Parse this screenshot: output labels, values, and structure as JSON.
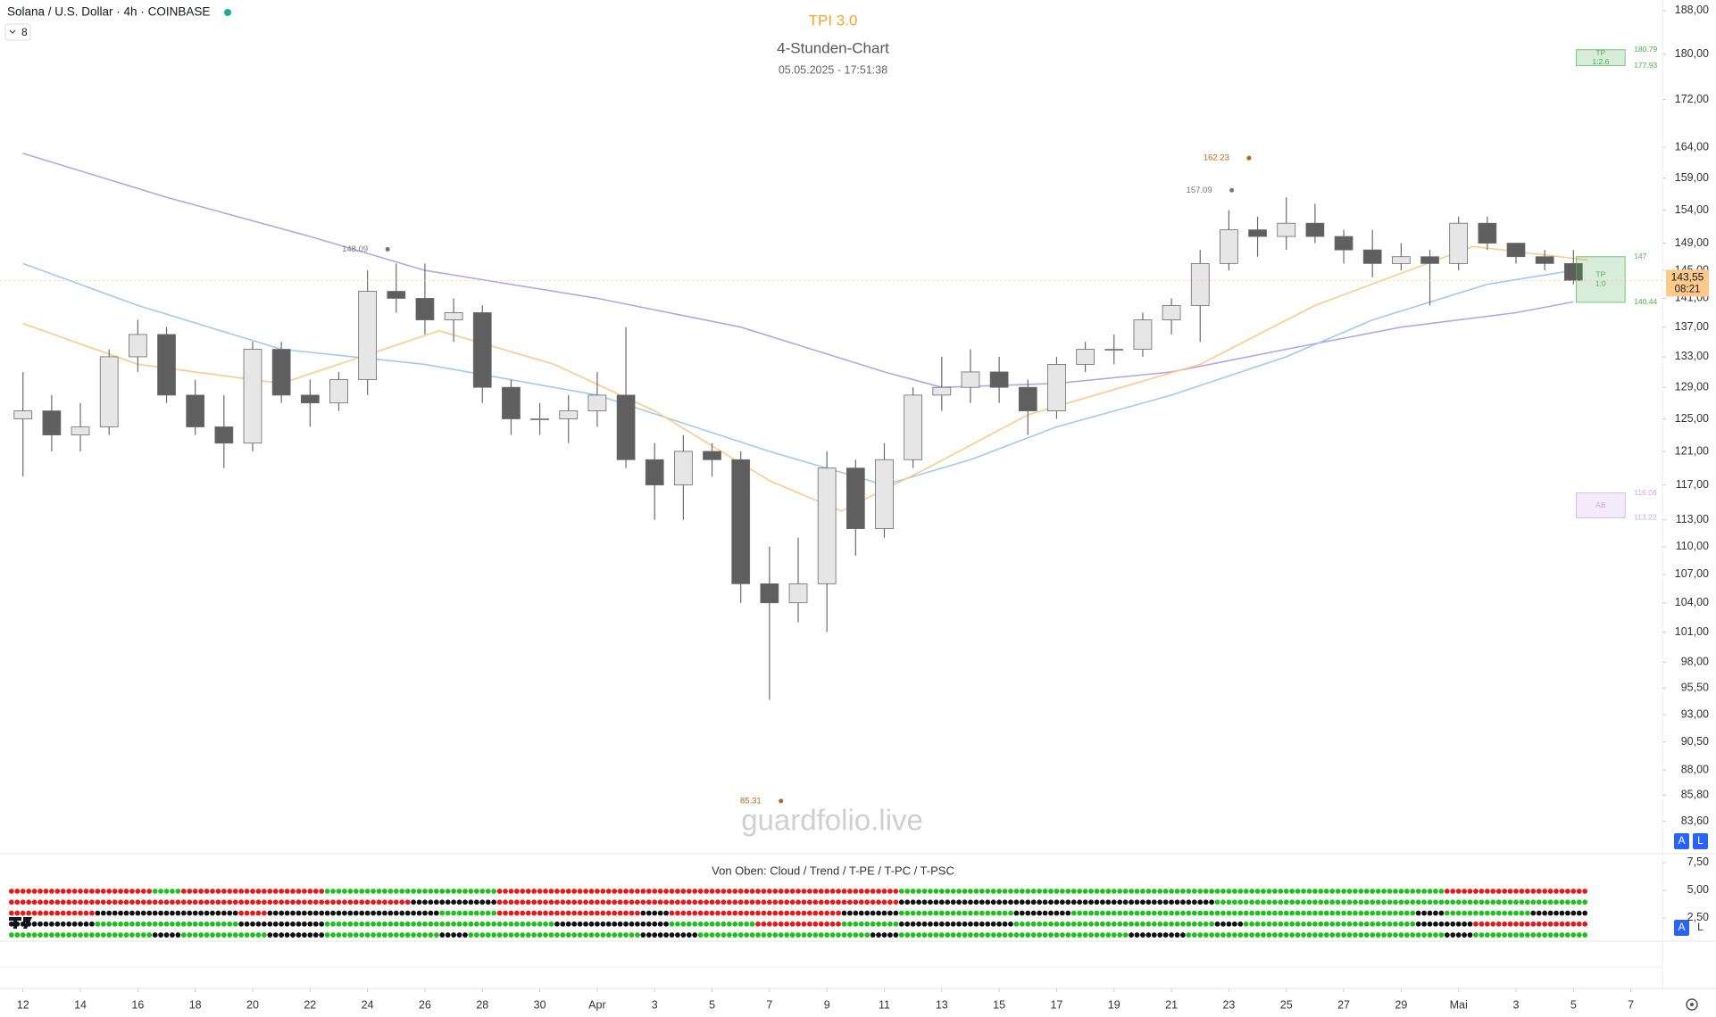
{
  "chart_data": [
    {
      "type": "candlestick",
      "symbol": "Solana / U.S. Dollar · 4h · COINBASE",
      "interval_badge": "8",
      "title": "TPI 3.0",
      "subtitle": "4-Stunden-Chart",
      "timestamp": "05.05.2025 - 17:51:38",
      "watermark": "guardfolio.live",
      "buttons": [
        "A",
        "L"
      ],
      "log_y": true,
      "xlim": [
        -0.8,
        57.1
      ],
      "ylim": [
        81,
        190
      ],
      "xticks": [
        {
          "value": 0,
          "label": "12"
        },
        {
          "value": 2,
          "label": "14"
        },
        {
          "value": 4,
          "label": "16"
        },
        {
          "value": 6,
          "label": "18"
        },
        {
          "value": 8,
          "label": "20"
        },
        {
          "value": 10,
          "label": "22"
        },
        {
          "value": 12,
          "label": "24"
        },
        {
          "value": 14,
          "label": "26"
        },
        {
          "value": 16,
          "label": "28"
        },
        {
          "value": 18,
          "label": "30"
        },
        {
          "value": 20,
          "label": "Apr"
        },
        {
          "value": 22,
          "label": "3"
        },
        {
          "value": 24,
          "label": "5"
        },
        {
          "value": 26,
          "label": "7"
        },
        {
          "value": 28,
          "label": "9"
        },
        {
          "value": 30,
          "label": "11"
        },
        {
          "value": 32,
          "label": "13"
        },
        {
          "value": 34,
          "label": "15"
        },
        {
          "value": 36,
          "label": "17"
        },
        {
          "value": 38,
          "label": "19"
        },
        {
          "value": 40,
          "label": "21"
        },
        {
          "value": 42,
          "label": "23"
        },
        {
          "value": 44,
          "label": "25"
        },
        {
          "value": 46,
          "label": "27"
        },
        {
          "value": 48,
          "label": "29"
        },
        {
          "value": 50,
          "label": "Mai"
        },
        {
          "value": 52,
          "label": "3"
        },
        {
          "value": 54,
          "label": "5"
        },
        {
          "value": 56,
          "label": "7"
        }
      ],
      "yticks": [
        {
          "value": 188,
          "label": "188,00"
        },
        {
          "value": 180,
          "label": "180,00"
        },
        {
          "value": 172,
          "label": "172,00"
        },
        {
          "value": 164,
          "label": "164,00"
        },
        {
          "value": 159,
          "label": "159,00"
        },
        {
          "value": 154,
          "label": "154,00"
        },
        {
          "value": 149,
          "label": "149,00"
        },
        {
          "value": 145,
          "label": "145,00"
        },
        {
          "value": 141,
          "label": "141,00"
        },
        {
          "value": 137,
          "label": "137,00"
        },
        {
          "value": 133,
          "label": "133,00"
        },
        {
          "value": 129,
          "label": "129,00"
        },
        {
          "value": 125,
          "label": "125,00"
        },
        {
          "value": 121,
          "label": "121,00"
        },
        {
          "value": 117,
          "label": "117,00"
        },
        {
          "value": 113,
          "label": "113,00"
        },
        {
          "value": 110,
          "label": "110,00"
        },
        {
          "value": 107,
          "label": "107,00"
        },
        {
          "value": 104,
          "label": "104,00"
        },
        {
          "value": 101,
          "label": "101,00"
        },
        {
          "value": 98,
          "label": "98,00"
        },
        {
          "value": 95.5,
          "label": "95,50"
        },
        {
          "value": 93,
          "label": "93,00"
        },
        {
          "value": 90.5,
          "label": "90,50"
        },
        {
          "value": 88,
          "label": "88,00"
        },
        {
          "value": 85.8,
          "label": "85,80"
        },
        {
          "value": 83.6,
          "label": "83,60"
        }
      ],
      "x": [
        0,
        1,
        2,
        3,
        4,
        5,
        6,
        7,
        8,
        9,
        10,
        11,
        12,
        13,
        14,
        15,
        16,
        17,
        18,
        19,
        20,
        21,
        22,
        23,
        24,
        25,
        26,
        27,
        28,
        29,
        30,
        31,
        32,
        33,
        34,
        35,
        36,
        37,
        38,
        39,
        40,
        41,
        42,
        43,
        44,
        45,
        46,
        47,
        48,
        49,
        50,
        51,
        52,
        53,
        54
      ],
      "open": [
        125,
        126,
        123,
        124,
        133,
        136,
        128,
        124,
        122,
        134,
        128,
        127,
        130,
        142,
        141,
        138,
        139,
        129,
        125,
        125,
        126,
        128,
        120,
        117,
        121,
        120,
        106,
        104,
        106,
        119,
        112,
        120,
        128,
        129,
        131,
        129,
        126,
        132,
        134,
        134,
        138,
        140,
        146,
        151,
        150,
        152,
        150,
        148,
        146,
        147,
        146,
        152,
        149,
        147,
        146
      ],
      "high": [
        131,
        128,
        127,
        134,
        138,
        137,
        130,
        128,
        135,
        135,
        130,
        131,
        145,
        146,
        146,
        141,
        140,
        130,
        127,
        128,
        131,
        137,
        122,
        123,
        122,
        121,
        110,
        111,
        121,
        120,
        122,
        129,
        133,
        134,
        133,
        130,
        133,
        135,
        136,
        139,
        141,
        148,
        154,
        153,
        156,
        155,
        151,
        151,
        149,
        148,
        153,
        153,
        149,
        148,
        148
      ],
      "low": [
        118,
        121,
        121,
        123,
        131,
        127,
        123,
        119,
        121,
        127,
        124,
        126,
        128,
        139,
        136,
        135,
        127,
        123,
        123,
        122,
        124,
        119,
        113,
        113,
        118,
        104,
        94.4,
        102,
        101,
        109,
        111,
        119,
        126,
        127,
        127,
        123,
        125,
        131,
        132,
        133,
        136,
        135,
        145,
        147,
        148,
        149,
        146,
        144,
        145,
        140,
        145,
        148,
        146,
        145,
        143
      ],
      "close": [
        126,
        123,
        124,
        133,
        136,
        128,
        124,
        122,
        134,
        128,
        127,
        130,
        142,
        141,
        138,
        139,
        129,
        125,
        125,
        126,
        128,
        120,
        117,
        121,
        120,
        106,
        104,
        106,
        119,
        112,
        120,
        128,
        129,
        131,
        129,
        126,
        132,
        134,
        134,
        138,
        140,
        146,
        151,
        150,
        152,
        150,
        148,
        146,
        147,
        146,
        152,
        149,
        147,
        146,
        143.55
      ],
      "up_color": "#e6e6e6",
      "down_color": "#5f5f5f",
      "wick_color": "#6b6b6b",
      "lines": [
        {
          "color": "#b3a6e6",
          "x": [
            0,
            5,
            10,
            14,
            20,
            25,
            30,
            32,
            36,
            40,
            44,
            48,
            52,
            54
          ],
          "values": [
            163,
            156,
            150,
            145,
            141,
            137,
            131,
            129,
            129.5,
            131,
            134,
            137,
            139,
            140.5
          ]
        },
        {
          "color": "#9ecbf0",
          "x": [
            0,
            4,
            9,
            14,
            20,
            26,
            30,
            33,
            36,
            40,
            44,
            47,
            51,
            54
          ],
          "values": [
            146,
            140,
            134,
            132,
            128,
            121,
            117,
            120,
            124,
            128,
            133,
            138,
            143,
            145
          ]
        },
        {
          "color": "#ffc98a",
          "x": [
            0,
            4,
            9,
            14.5,
            18.5,
            22,
            26,
            28.5,
            31.5,
            35,
            41,
            45,
            50.5,
            54.5
          ],
          "values": [
            137.5,
            132,
            129.5,
            136.5,
            132,
            126,
            117.5,
            114,
            119,
            125.5,
            132,
            140,
            148.5,
            146.5
          ]
        }
      ],
      "annotations": [
        {
          "x": 42.7,
          "value": 162.23,
          "color": "#b8651b"
        },
        {
          "x": 42.1,
          "value": 157.09,
          "color": "#777777"
        },
        {
          "x": 12.7,
          "value": 148.09,
          "color": "#777777"
        },
        {
          "x": 26.4,
          "value": 85.31,
          "color": "#b8651b"
        }
      ],
      "zones": [
        {
          "label": "TP",
          "sublabel": "1:2.6",
          "top": 180.79,
          "bottom": 177.93,
          "x": [
            54.1,
            55.8
          ],
          "color": "#4caf50"
        },
        {
          "label": "TP",
          "sublabel": "1:0",
          "top": 147.0,
          "bottom": 140.44,
          "x": [
            54.1,
            55.8
          ],
          "color": "#4caf50"
        },
        {
          "label": "AB",
          "top": 116.08,
          "bottom": 113.22,
          "x": [
            54.1,
            55.8
          ],
          "color": "#c9a6e8"
        }
      ],
      "last_price": {
        "value": 143.55,
        "label": "143,55",
        "countdown": "08:21",
        "color": "#ffc98a"
      }
    },
    {
      "type": "dots",
      "title": "Von Oben: Cloud / Trend / T-PE / T-PC / T-PSC",
      "ylim": [
        0.4,
        8.3
      ],
      "yticks": [
        {
          "value": 7.5,
          "label": "7,50"
        },
        {
          "value": 5,
          "label": "5,00"
        },
        {
          "value": 2.5,
          "label": "2,50"
        }
      ],
      "palette": {
        "r": "#e31b1b",
        "g": "#1fc01f",
        "k": "#111111"
      },
      "rows": [
        "rrrrrgrrrrrggggggrrrrrrrrrrrrrrgggggggggggggggggggrrrrr",
        "rrrrrrrrrrrrrrkkkrrrrrrrrrrrrrrkkkkkkkkkkkggggggggggggg",
        "rrrkkkkkrkkkkkkggrrrrrkrrrrrrkkggggkkggggggggggggkgggkk",
        "kkkgggggkkkggggggggkkkkgggrrrggkkkkgggggggkggggggkkrrrr",
        "gggggkgggkkggggkggggggkkggggggkggggggggkkgggggggggkgggg"
      ]
    }
  ]
}
